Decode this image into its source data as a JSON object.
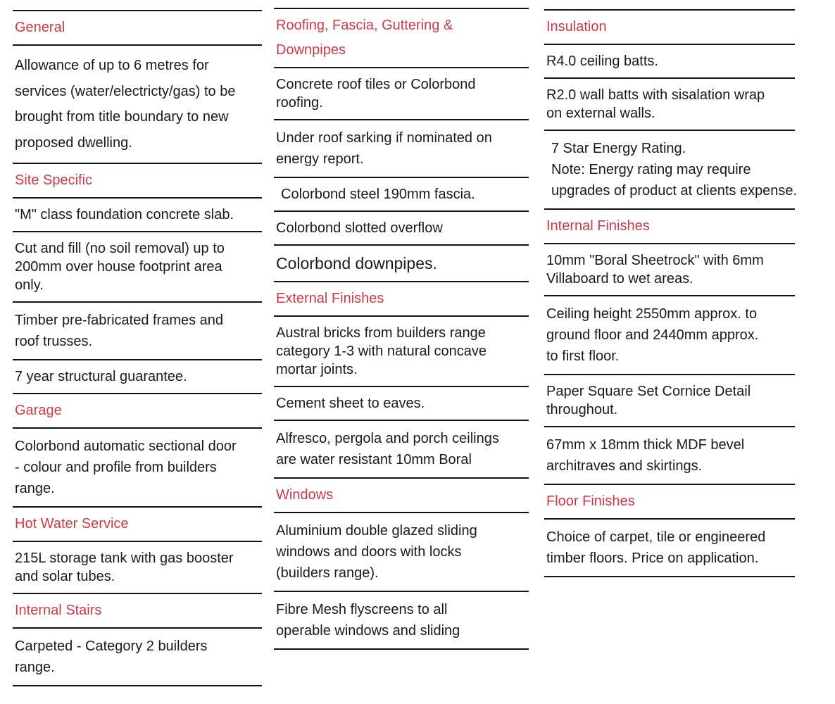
{
  "page": {
    "background": "#ffffff",
    "accent_red": "#cc3946",
    "text_color": "#1a1a1a",
    "rule_color": "#141414"
  },
  "columns": [
    {
      "name": "left",
      "sections": [
        {
          "kind": "heading",
          "text": "General"
        },
        {
          "kind": "item",
          "text": "Allowance of up to 6 metres for\nservices (water/electricty/gas) to be\nbrought from title boundary to new\nproposed dwelling."
        },
        {
          "kind": "heading",
          "text": "Site Specific"
        },
        {
          "kind": "item",
          "text": "\"M\" class foundation concrete slab."
        },
        {
          "kind": "item",
          "text": "Cut and fill (no soil removal) up to\n200mm over house footprint area\nonly."
        },
        {
          "kind": "item",
          "text": "Timber pre-fabricated frames and\nroof trusses."
        },
        {
          "kind": "item",
          "text": "7 year structural guarantee."
        },
        {
          "kind": "heading",
          "text": "Garage"
        },
        {
          "kind": "item",
          "text": "Colorbond automatic sectional door\n- colour and profile from builders\nrange."
        },
        {
          "kind": "heading",
          "text": "Hot Water Service"
        },
        {
          "kind": "item",
          "text": "215L storage tank with gas booster\nand solar tubes."
        },
        {
          "kind": "heading",
          "text": "Internal Stairs"
        },
        {
          "kind": "item",
          "text": "Carpeted - Category 2 builders\nrange."
        }
      ]
    },
    {
      "name": "middle",
      "sections": [
        {
          "kind": "heading",
          "text": "Roofing, Fascia, Guttering &\nDownpipes"
        },
        {
          "kind": "item",
          "text": "Concrete roof tiles or Colorbond\nroofing."
        },
        {
          "kind": "item",
          "text": "Under roof sarking if nominated on\nenergy report."
        },
        {
          "kind": "item",
          "text": "Colorbond steel 190mm fascia."
        },
        {
          "kind": "item",
          "text": "Colorbond slotted overflow"
        },
        {
          "kind": "item",
          "text": "Colorbond downpipes."
        },
        {
          "kind": "heading",
          "text": "External Finishes"
        },
        {
          "kind": "item",
          "text": "Austral bricks from builders range\ncategory 1-3 with natural concave\nmortar joints."
        },
        {
          "kind": "item",
          "text": "Cement sheet to eaves."
        },
        {
          "kind": "item",
          "text": "Alfresco, pergola and porch ceilings\nare water resistant 10mm Boral"
        },
        {
          "kind": "heading",
          "text": "Windows"
        },
        {
          "kind": "item",
          "text": "Aluminium double glazed sliding\nwindows and doors with locks\n(builders range)."
        },
        {
          "kind": "item",
          "text": "Fibre Mesh flyscreens to all\noperable windows and sliding"
        }
      ]
    },
    {
      "name": "right",
      "sections": [
        {
          "kind": "heading",
          "text": "Insulation"
        },
        {
          "kind": "item",
          "text": "R4.0 ceiling batts."
        },
        {
          "kind": "item",
          "text": "R2.0 wall batts with sisalation wrap\non external walls."
        },
        {
          "kind": "item",
          "text": "7 Star Energy Rating.\nNote: Energy rating may require\nupgrades of product at clients expense."
        },
        {
          "kind": "heading",
          "text": "Internal Finishes"
        },
        {
          "kind": "item",
          "text": "10mm \"Boral Sheetrock\" with 6mm\nVillaboard to wet areas."
        },
        {
          "kind": "item",
          "text": "Ceiling height 2550mm approx. to\nground floor and 2440mm approx.\nto first floor."
        },
        {
          "kind": "item",
          "text": "Paper Square Set Cornice Detail\nthroughout."
        },
        {
          "kind": "item",
          "text": "67mm x 18mm thick MDF bevel\narchitraves and skirtings."
        },
        {
          "kind": "heading",
          "text": "Floor Finishes"
        },
        {
          "kind": "item",
          "text": "Choice of carpet, tile or engineered\ntimber floors. Price on application."
        }
      ]
    }
  ]
}
